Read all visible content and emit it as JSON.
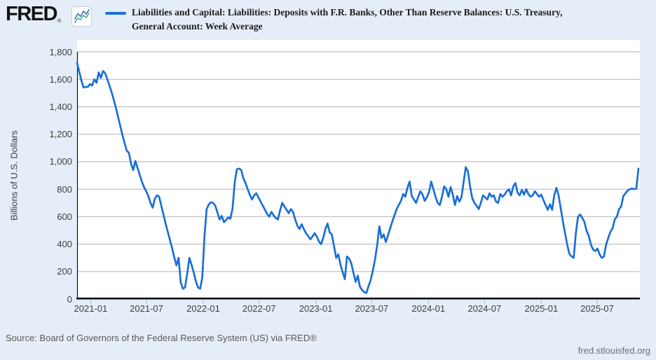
{
  "header": {
    "logo_text": "FRED",
    "logo_registered_mark": "®",
    "legend_color": "#1b6fd6",
    "title_line1": "Liabilities and Capital: Liabilities: Deposits with F.R. Banks, Other Than Reserve Balances: U.S. Treasury,",
    "title_line2": "General Account: Week Average"
  },
  "footer": {
    "source": "Source: Board of Governors of the Federal Reserve System (US) via FRED®",
    "site": "fred.stlouisfed.org"
  },
  "chart_data": {
    "type": "line",
    "title": "Liabilities and Capital: Liabilities: Deposits with F.R. Banks, Other Than Reserve Balances: U.S. Treasury, General Account: Week Average",
    "ylabel": "Billions of U.S. Dollars",
    "xlabel": "",
    "unit": "billions of U.S. dollars",
    "frequency": "weekly",
    "start_date": "2020-11-18",
    "end_date": "2025-11-12",
    "ylim": [
      0,
      1800
    ],
    "y_tick_interval": 200,
    "y_tick_labels": [
      "0",
      "200",
      "400",
      "600",
      "800",
      "1,000",
      "1,200",
      "1,400",
      "1,600",
      "1,800"
    ],
    "x_tick_labels": [
      "2021-01",
      "2021-07",
      "2022-01",
      "2022-07",
      "2023-01",
      "2023-07",
      "2024-01",
      "2024-07",
      "2025-01",
      "2025-07"
    ],
    "grid": "horizontal",
    "legend_position": "top",
    "line_color": "#1b6fd6",
    "grid_color": "#b5b5b5",
    "values": [
      1720,
      1655,
      1590,
      1540,
      1545,
      1545,
      1565,
      1555,
      1600,
      1575,
      1650,
      1610,
      1660,
      1645,
      1600,
      1555,
      1505,
      1450,
      1390,
      1325,
      1260,
      1195,
      1135,
      1080,
      1065,
      985,
      940,
      1005,
      955,
      905,
      855,
      815,
      785,
      750,
      700,
      665,
      730,
      755,
      745,
      680,
      615,
      550,
      490,
      430,
      370,
      305,
      245,
      300,
      120,
      75,
      85,
      185,
      300,
      250,
      195,
      130,
      85,
      75,
      160,
      460,
      655,
      690,
      705,
      700,
      680,
      630,
      580,
      605,
      560,
      575,
      595,
      585,
      660,
      850,
      945,
      950,
      940,
      880,
      845,
      800,
      760,
      725,
      755,
      770,
      740,
      710,
      680,
      650,
      620,
      600,
      635,
      610,
      590,
      580,
      645,
      700,
      675,
      650,
      625,
      655,
      635,
      580,
      535,
      510,
      545,
      510,
      480,
      460,
      435,
      455,
      480,
      455,
      420,
      400,
      445,
      510,
      550,
      485,
      470,
      385,
      300,
      325,
      250,
      195,
      145,
      310,
      295,
      260,
      190,
      125,
      170,
      90,
      65,
      50,
      45,
      95,
      140,
      210,
      290,
      395,
      530,
      445,
      470,
      415,
      465,
      515,
      565,
      610,
      655,
      685,
      715,
      765,
      745,
      810,
      855,
      750,
      725,
      700,
      745,
      785,
      760,
      715,
      740,
      780,
      855,
      800,
      745,
      700,
      685,
      745,
      820,
      800,
      745,
      815,
      760,
      685,
      750,
      710,
      740,
      850,
      960,
      930,
      820,
      735,
      700,
      680,
      655,
      700,
      755,
      740,
      725,
      770,
      745,
      755,
      710,
      700,
      765,
      745,
      760,
      785,
      800,
      755,
      820,
      845,
      775,
      755,
      795,
      760,
      800,
      765,
      745,
      755,
      785,
      765,
      745,
      760,
      720,
      685,
      650,
      690,
      650,
      755,
      810,
      755,
      660,
      565,
      480,
      395,
      330,
      310,
      300,
      480,
      600,
      615,
      590,
      560,
      495,
      460,
      395,
      360,
      350,
      367,
      325,
      300,
      310,
      395,
      445,
      490,
      515,
      580,
      600,
      655,
      675,
      750,
      770,
      790,
      800,
      805,
      800,
      805,
      950
    ]
  }
}
